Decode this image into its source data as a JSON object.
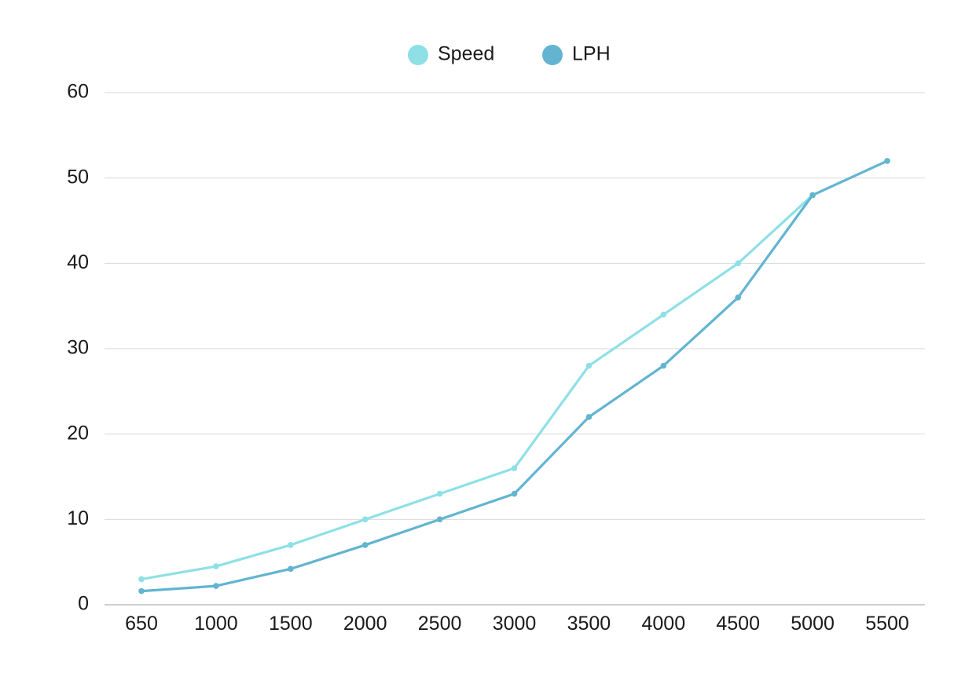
{
  "chart_data": {
    "type": "line",
    "title": "",
    "xlabel": "",
    "ylabel": "",
    "categories": [
      "650",
      "1000",
      "1500",
      "2000",
      "2500",
      "3000",
      "3500",
      "4000",
      "4500",
      "5000",
      "5500"
    ],
    "series": [
      {
        "name": "Speed",
        "color": "#8ee0e6",
        "values": [
          3,
          4.5,
          7,
          10,
          13,
          16,
          28,
          34,
          40,
          48,
          null
        ]
      },
      {
        "name": "LPH",
        "color": "#62b4d1",
        "values": [
          1.6,
          2.2,
          4.2,
          7,
          10,
          13,
          22,
          28,
          36,
          48,
          52
        ]
      }
    ],
    "ylim": [
      0,
      60
    ],
    "yticks": [
      "0",
      "10",
      "20",
      "30",
      "40",
      "50",
      "60"
    ],
    "grid": true,
    "legend_position": "top-center"
  }
}
